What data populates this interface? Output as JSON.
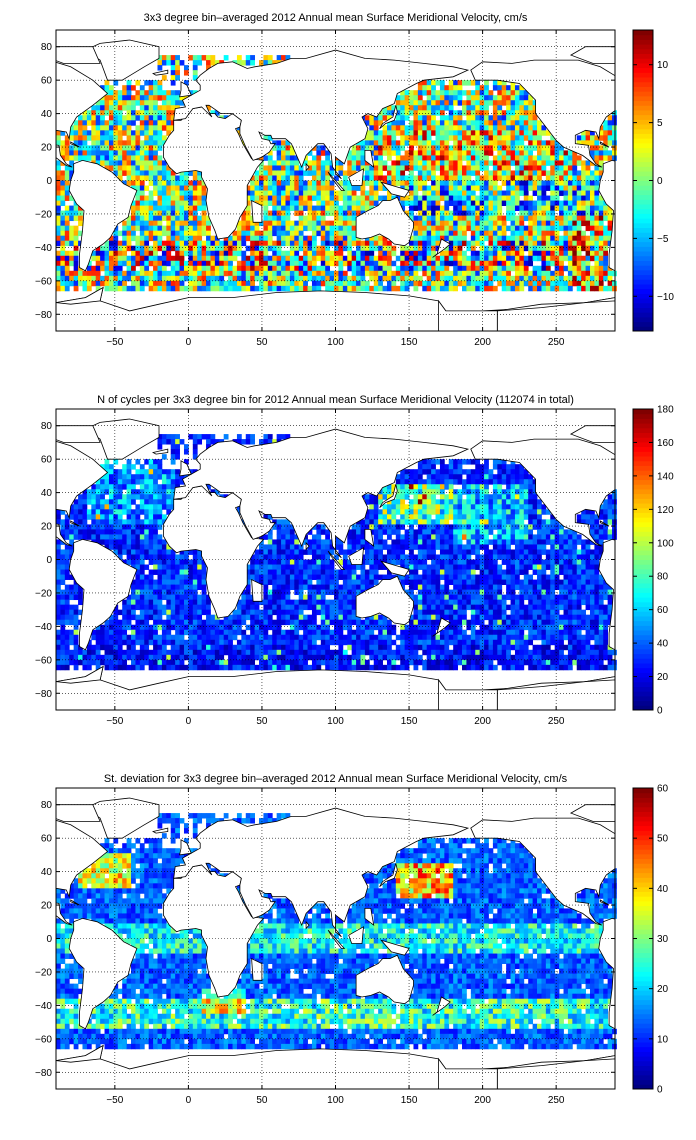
{
  "chart_data": [
    {
      "type": "heatmap",
      "title": "3x3 degree bin–averaged 2012 Annual mean Surface Meridional Velocity, cm/s",
      "xlim": [
        -90,
        290
      ],
      "ylim": [
        -90,
        90
      ],
      "x_ticks": [
        -50,
        0,
        50,
        100,
        150,
        200,
        250
      ],
      "y_ticks": [
        80,
        60,
        40,
        20,
        0,
        -20,
        -40,
        -60,
        -80
      ],
      "colorbar": {
        "min": -13,
        "max": 13,
        "ticks": [
          10,
          5,
          0,
          -5,
          -10
        ],
        "colormap": "jet"
      },
      "field": "meridional-velocity",
      "grid": true
    },
    {
      "type": "heatmap",
      "title": "N of cycles per 3x3 degree bin for 2012 Annual mean Surface Meridional Velocity (112074 in total)",
      "xlim": [
        -90,
        290
      ],
      "ylim": [
        -90,
        90
      ],
      "x_ticks": [
        -50,
        0,
        50,
        100,
        150,
        200,
        250
      ],
      "y_ticks": [
        80,
        60,
        40,
        20,
        0,
        -20,
        -40,
        -60,
        -80
      ],
      "colorbar": {
        "min": 0,
        "max": 180,
        "ticks": [
          180,
          160,
          140,
          120,
          100,
          80,
          60,
          40,
          20,
          0
        ],
        "colormap": "jet"
      },
      "field": "cycle-count",
      "grid": true
    },
    {
      "type": "heatmap",
      "title": "St. deviation for 3x3 degree bin–averaged 2012 Annual mean Surface Meridional Velocity, cm/s",
      "xlim": [
        -90,
        290
      ],
      "ylim": [
        -90,
        90
      ],
      "x_ticks": [
        -50,
        0,
        50,
        100,
        150,
        200,
        250
      ],
      "y_ticks": [
        80,
        60,
        40,
        20,
        0,
        -20,
        -40,
        -60,
        -80
      ],
      "colorbar": {
        "min": 0,
        "max": 60,
        "ticks": [
          60,
          50,
          40,
          30,
          20,
          10,
          0
        ],
        "colormap": "jet"
      },
      "field": "standard-deviation",
      "grid": true
    }
  ]
}
